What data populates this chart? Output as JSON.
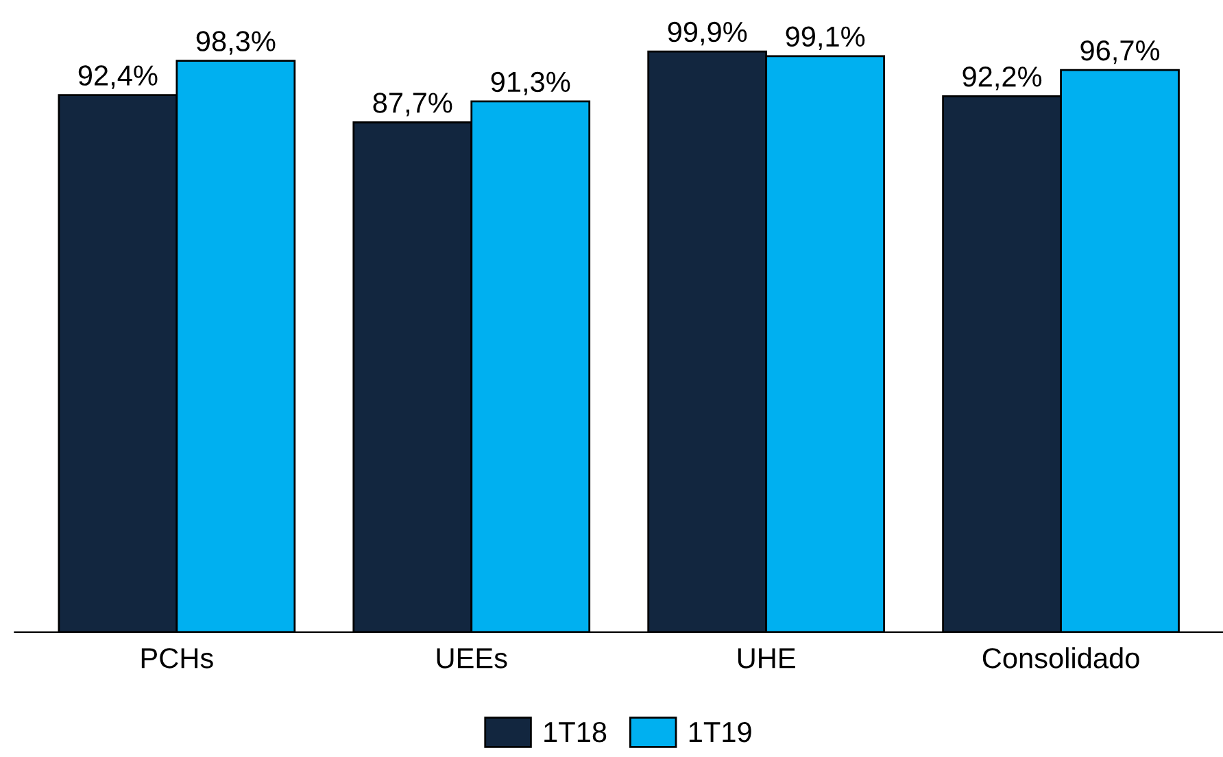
{
  "chart_data": {
    "type": "bar",
    "categories": [
      "PCHs",
      "UEEs",
      "UHE",
      "Consolidado"
    ],
    "series": [
      {
        "name": "1T18",
        "color": "#12263f",
        "values": [
          92.4,
          87.7,
          99.9,
          92.2
        ],
        "value_labels": [
          "92,4%",
          "87,7%",
          "99,9%",
          "92,2%"
        ]
      },
      {
        "name": "1T19",
        "color": "#00b0f0",
        "values": [
          98.3,
          91.3,
          99.1,
          96.7
        ],
        "value_labels": [
          "98,3%",
          "91,3%",
          "99,1%",
          "96,7%"
        ]
      }
    ],
    "legend": "bottom",
    "grid": false,
    "tick_labels": "x"
  }
}
